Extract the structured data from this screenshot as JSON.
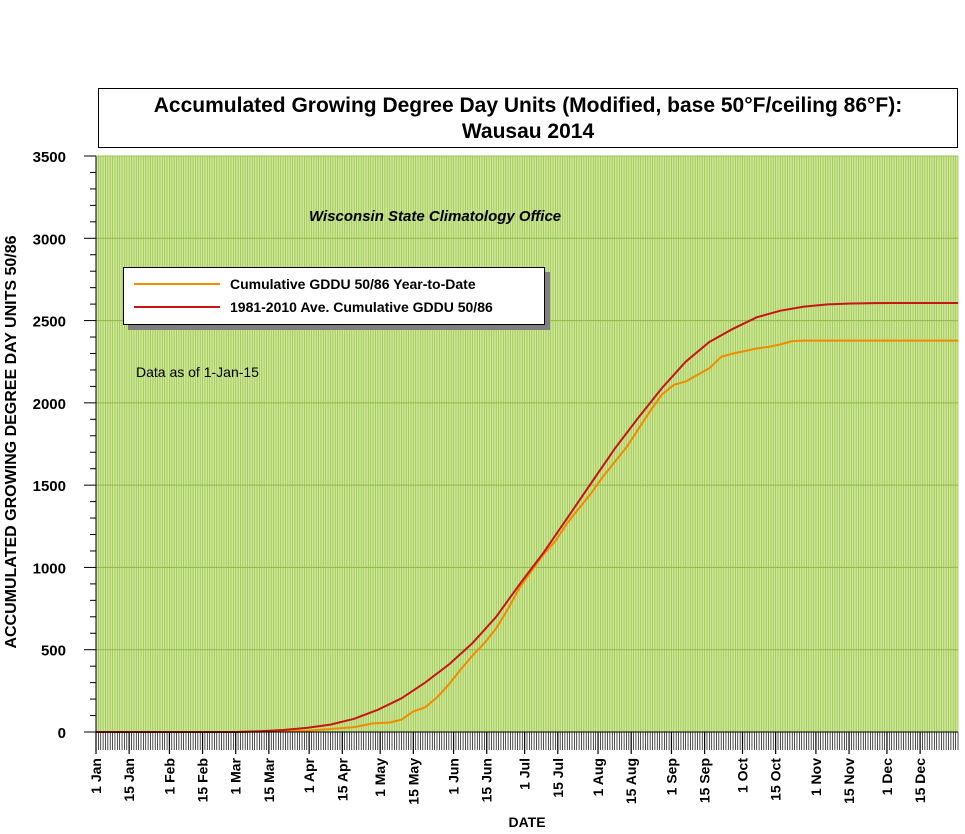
{
  "title_line1": "Accumulated Growing Degree Day Units (Modified, base 50°F/ceiling 86°F):",
  "title_line2": "Wausau 2014",
  "subtitle": "Wisconsin State Climatology Office",
  "note": "Data as of 1-Jan-15",
  "colors": {
    "plot_background": "#cfe79a",
    "grid_vertical": "#9bc550",
    "grid_horizontal": "#8fb74a"
  },
  "chart_data": {
    "type": "line",
    "title": "Accumulated Growing Degree Day Units (Modified, base 50°F/ceiling 86°F): Wausau 2014",
    "xlabel": "DATE",
    "ylabel": "ACCUMULATED GROWING DEGREE DAY UNITS 50/86",
    "ylim": [
      0,
      3500
    ],
    "yticks": [
      0,
      500,
      1000,
      1500,
      2000,
      2500,
      3000,
      3500
    ],
    "xlim": [
      "1 Jan",
      "31 Dec"
    ],
    "xtick_labels": [
      "1 Jan",
      "15 Jan",
      "1 Feb",
      "15 Feb",
      "1 Mar",
      "15 Mar",
      "1 Apr",
      "15 Apr",
      "1 May",
      "15 May",
      "1 Jun",
      "15 Jun",
      "1 Jul",
      "15 Jul",
      "1 Aug",
      "15 Aug",
      "1 Sep",
      "15 Sep",
      "1 Oct",
      "15 Oct",
      "1 Nov",
      "15 Nov",
      "1 Dec",
      "15 Dec"
    ],
    "xtick_days": [
      1,
      15,
      32,
      46,
      60,
      74,
      91,
      105,
      121,
      135,
      152,
      166,
      182,
      196,
      213,
      227,
      244,
      258,
      274,
      288,
      305,
      319,
      335,
      349
    ],
    "grid": true,
    "legend_position": "top-left",
    "series": [
      {
        "name": "Cumulative GDDU 50/86 Year-to-Date",
        "color": "#f08c00",
        "x": [
          1,
          60,
          75,
          90,
          100,
          110,
          118,
          125,
          130,
          135,
          140,
          145,
          150,
          155,
          160,
          165,
          170,
          175,
          180,
          185,
          190,
          195,
          200,
          205,
          210,
          215,
          220,
          225,
          230,
          235,
          240,
          245,
          250,
          255,
          260,
          265,
          270,
          275,
          280,
          285,
          290,
          295,
          300,
          310,
          320,
          330,
          340,
          350,
          365
        ],
        "y": [
          0,
          0,
          3,
          8,
          18,
          30,
          52,
          58,
          75,
          125,
          150,
          210,
          290,
          380,
          465,
          540,
          630,
          750,
          880,
          980,
          1080,
          1160,
          1270,
          1360,
          1450,
          1550,
          1640,
          1730,
          1840,
          1950,
          2050,
          2110,
          2130,
          2170,
          2210,
          2280,
          2300,
          2315,
          2330,
          2340,
          2355,
          2375,
          2378,
          2378,
          2378,
          2378,
          2378,
          2378,
          2378
        ]
      },
      {
        "name": "1981-2010 Ave. Cumulative GDDU 50/86",
        "color": "#c81414",
        "x": [
          1,
          60,
          70,
          80,
          90,
          100,
          110,
          120,
          130,
          140,
          150,
          160,
          170,
          180,
          190,
          200,
          210,
          220,
          230,
          240,
          250,
          260,
          270,
          280,
          290,
          300,
          310,
          320,
          330,
          340,
          350,
          365
        ],
        "y": [
          0,
          0,
          5,
          12,
          25,
          45,
          80,
          135,
          205,
          300,
          410,
          540,
          700,
          900,
          1090,
          1300,
          1510,
          1720,
          1910,
          2090,
          2250,
          2370,
          2450,
          2520,
          2560,
          2585,
          2598,
          2604,
          2606,
          2607,
          2607,
          2607
        ]
      }
    ]
  }
}
